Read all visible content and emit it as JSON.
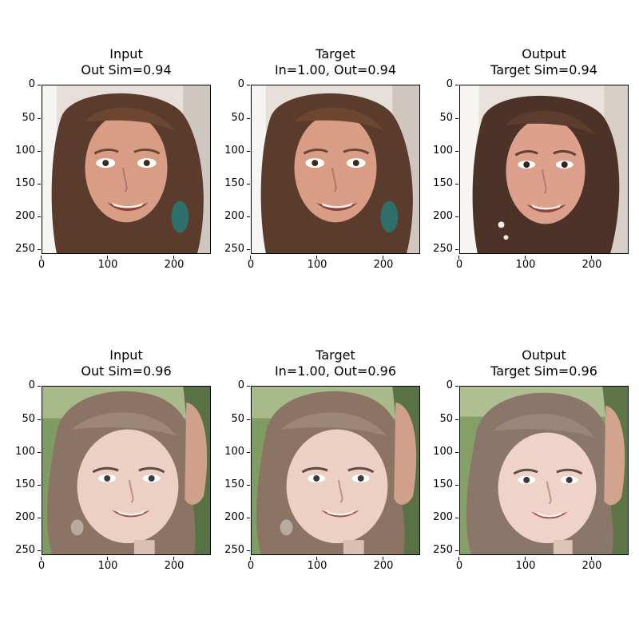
{
  "figure": {
    "panels": [
      {
        "title_line1": "Input",
        "title_line2": "Out Sim=0.94",
        "image": "portrait-woman-brown-hair-earrings",
        "yticks": [
          "0",
          "50",
          "100",
          "150",
          "200",
          "250"
        ],
        "xticks": [
          "0",
          "100",
          "200"
        ]
      },
      {
        "title_line1": "Target",
        "title_line2": "In=1.00, Out=0.94",
        "image": "portrait-woman-brown-hair-earrings",
        "yticks": [
          "0",
          "50",
          "100",
          "150",
          "200",
          "250"
        ],
        "xticks": [
          "0",
          "100",
          "200"
        ]
      },
      {
        "title_line1": "Output",
        "title_line2": "Target Sim=0.94",
        "image": "portrait-woman-brown-hair-earrings-generated",
        "yticks": [
          "0",
          "50",
          "100",
          "150",
          "200",
          "250"
        ],
        "xticks": [
          "0",
          "100",
          "200"
        ]
      },
      {
        "title_line1": "Input",
        "title_line2": "Out Sim=0.96",
        "image": "portrait-woman-braided-hair-outdoors",
        "yticks": [
          "0",
          "50",
          "100",
          "150",
          "200",
          "250"
        ],
        "xticks": [
          "0",
          "100",
          "200"
        ]
      },
      {
        "title_line1": "Target",
        "title_line2": "In=1.00, Out=0.96",
        "image": "portrait-woman-braided-hair-outdoors",
        "yticks": [
          "0",
          "50",
          "100",
          "150",
          "200",
          "250"
        ],
        "xticks": [
          "0",
          "100",
          "200"
        ]
      },
      {
        "title_line1": "Output",
        "title_line2": "Target Sim=0.96",
        "image": "portrait-woman-braided-hair-outdoors-generated",
        "yticks": [
          "0",
          "50",
          "100",
          "150",
          "200",
          "250"
        ],
        "xticks": [
          "0",
          "100",
          "200"
        ]
      }
    ]
  },
  "colors": {
    "background": "#ffffff",
    "axis": "#000000",
    "text": "#000000",
    "skin_warm": "#d99d86",
    "skin_light": "#e9c8bb",
    "hair_brown": "#5a3b2c",
    "hair_light": "#8c7464",
    "foliage": "#6f8b4a"
  }
}
